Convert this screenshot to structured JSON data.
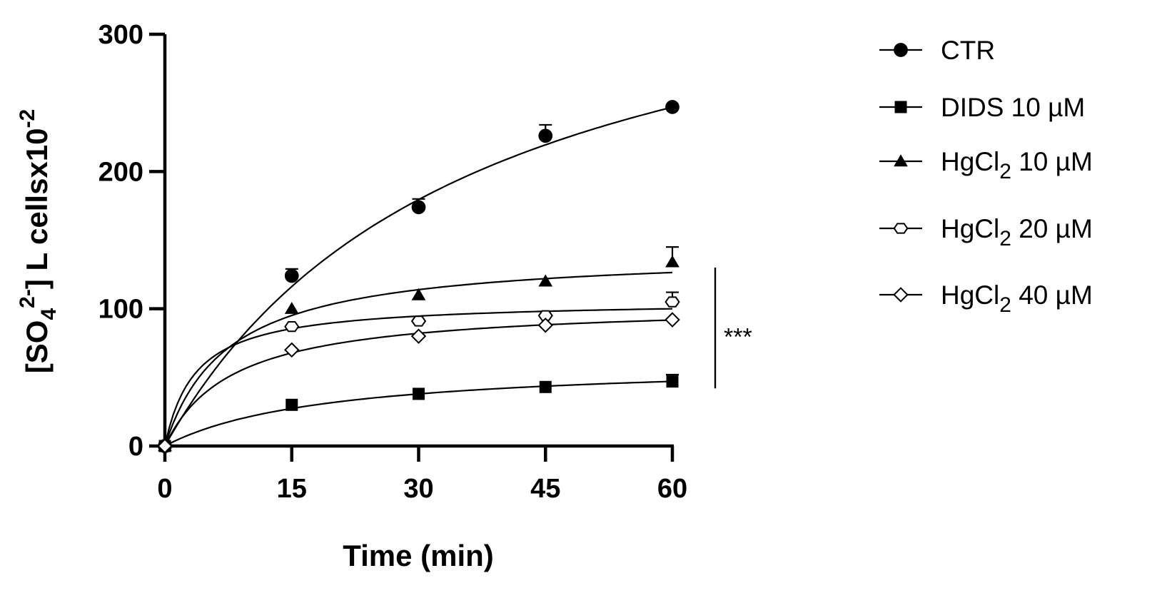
{
  "chart_data": {
    "type": "scatter",
    "xlabel": "Time (min)",
    "ylabel": "[SO4 2-] L cellsx10-2",
    "ylabel_parts": {
      "open": "[SO",
      "sub": "4",
      "sup": "2-",
      "rest": "] L cellsx10",
      "exp": "-2"
    },
    "x_ticks": [
      0,
      15,
      30,
      45,
      60
    ],
    "y_ticks": [
      0,
      100,
      200,
      300
    ],
    "xlim": [
      0,
      60
    ],
    "ylim": [
      0,
      300
    ],
    "grid": false,
    "legend_position": "right",
    "series": [
      {
        "name": "CTR",
        "marker": "filled-circle",
        "x": [
          0,
          15,
          30,
          45,
          60
        ],
        "y": [
          0,
          124,
          174,
          226,
          247
        ],
        "err": [
          0,
          5,
          6,
          8,
          0
        ],
        "fit": {
          "vmax": 395,
          "k": 36
        }
      },
      {
        "name": "DIDS 10 µM",
        "marker": "filled-square",
        "x": [
          0,
          15,
          30,
          45,
          60
        ],
        "y": [
          0,
          30,
          38,
          43,
          47
        ],
        "err": [
          0,
          0,
          0,
          0,
          5
        ],
        "fit": {
          "vmax": 62,
          "k": 19
        }
      },
      {
        "name": "HgCl2 10 µM",
        "marker": "filled-triangle",
        "x": [
          0,
          15,
          30,
          45,
          60
        ],
        "y": [
          0,
          100,
          110,
          120,
          134
        ],
        "err": [
          0,
          0,
          0,
          0,
          11
        ],
        "fit": {
          "vmax": 142,
          "k": 7.4
        }
      },
      {
        "name": "HgCl2 20 µM",
        "marker": "open-hexagon",
        "x": [
          0,
          15,
          30,
          45,
          60
        ],
        "y": [
          0,
          87,
          91,
          95,
          105
        ],
        "err": [
          0,
          0,
          0,
          0,
          7
        ],
        "fit": {
          "vmax": 106,
          "k": 3.6
        }
      },
      {
        "name": "HgCl2 40 µM",
        "marker": "open-diamond",
        "x": [
          0,
          15,
          30,
          45,
          60
        ],
        "y": [
          0,
          70,
          80,
          88,
          92
        ],
        "err": [
          0,
          0,
          0,
          0,
          0
        ],
        "fit": {
          "vmax": 104,
          "k": 8.0
        }
      }
    ],
    "legend": [
      {
        "prefix": "CTR",
        "sub": "",
        "suffix": ""
      },
      {
        "prefix": "DIDS 10 µM",
        "sub": "",
        "suffix": ""
      },
      {
        "prefix": "HgCl",
        "sub": "2",
        "suffix": " 10 µM"
      },
      {
        "prefix": "HgCl",
        "sub": "2",
        "suffix": " 20 µM"
      },
      {
        "prefix": "HgCl",
        "sub": "2",
        "suffix": " 40 µM"
      }
    ],
    "annotation": {
      "text": "***",
      "y_from": 42,
      "y_to": 130
    }
  }
}
